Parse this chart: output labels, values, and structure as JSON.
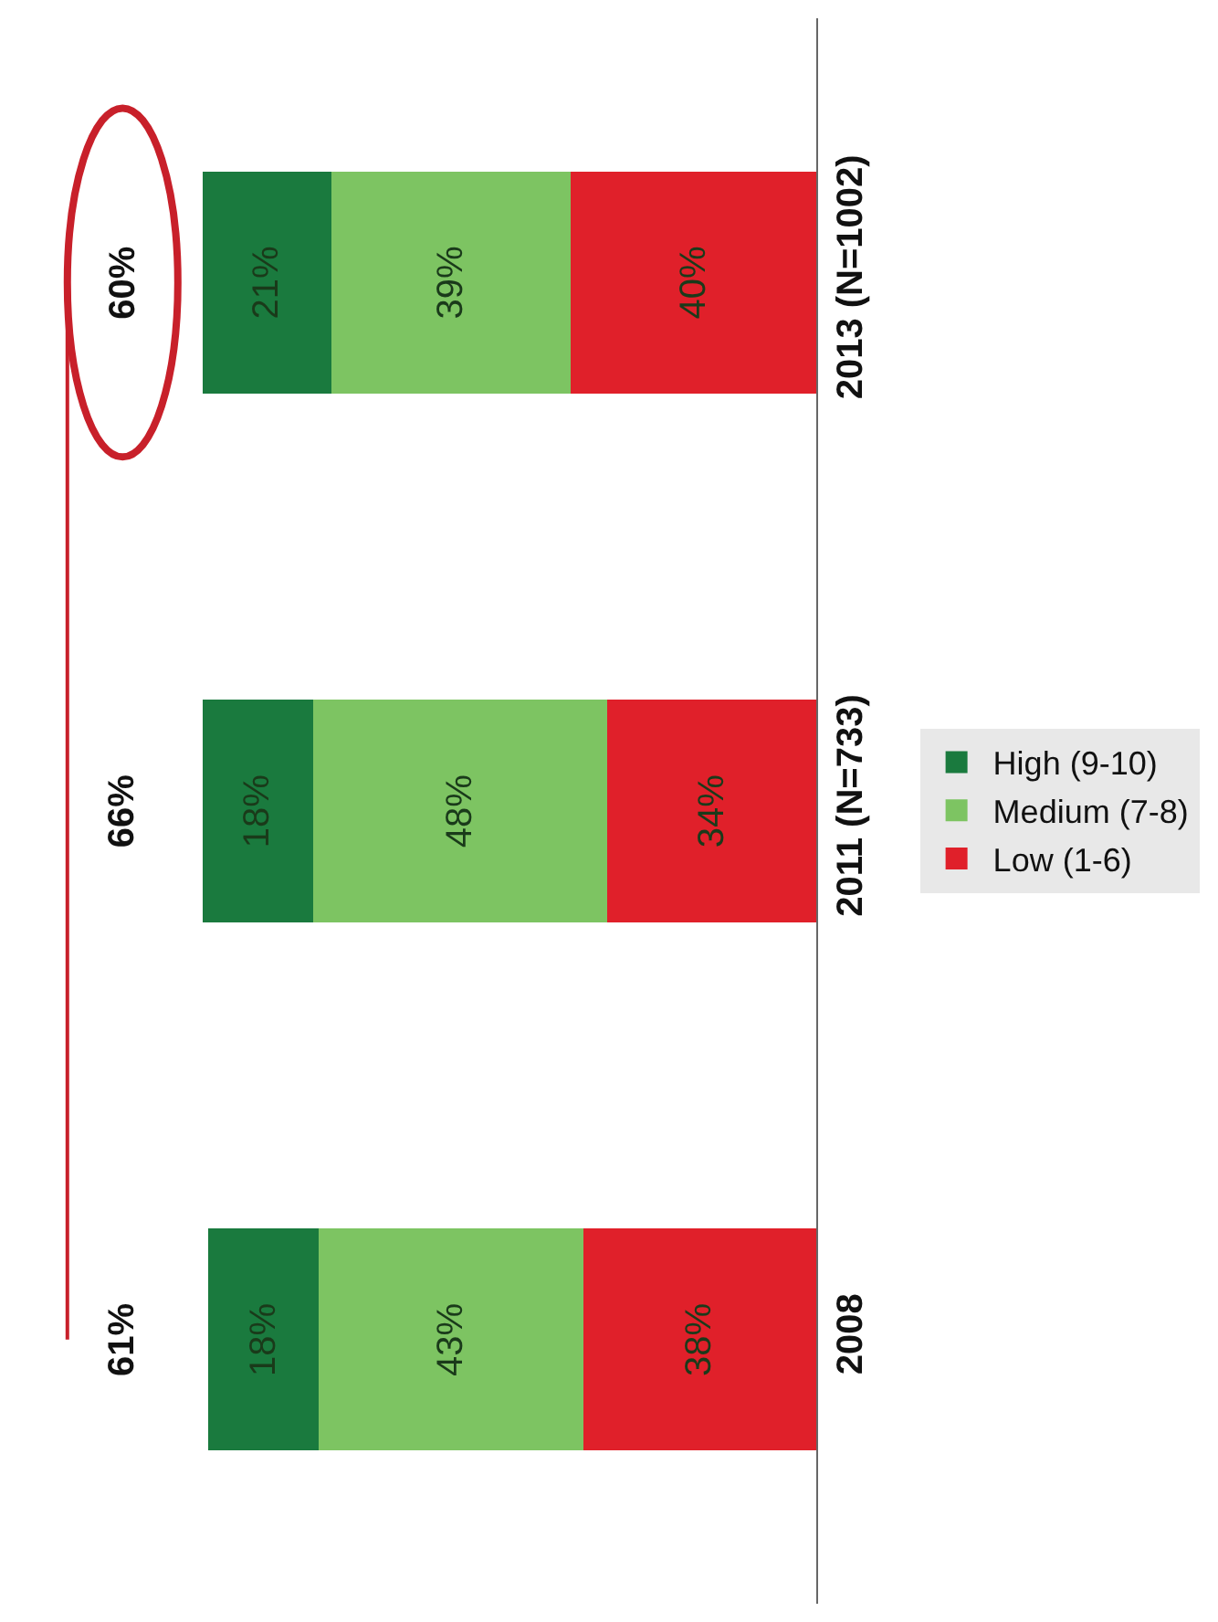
{
  "chart_data": {
    "type": "bar",
    "orientation": "horizontal",
    "stacked": true,
    "categories": [
      "2013 (N=1002)",
      "2011 (N=733)",
      "2008"
    ],
    "series": [
      {
        "name": "Low (1-6)",
        "color": "#e0202a",
        "values": [
          40,
          34,
          38
        ],
        "value_labels": [
          "40%",
          "34%",
          "38%"
        ]
      },
      {
        "name": "Medium (7-8)",
        "color": "#7dc462",
        "values": [
          39,
          48,
          43
        ],
        "value_labels": [
          "39%",
          "48%",
          "43%"
        ]
      },
      {
        "name": "High (9-10)",
        "color": "#1a7a3e",
        "values": [
          21,
          18,
          18
        ],
        "value_labels": [
          "21%",
          "18%",
          "18%"
        ]
      }
    ],
    "annotations": [
      "60%",
      "66%",
      "61%"
    ],
    "legend": "right"
  }
}
